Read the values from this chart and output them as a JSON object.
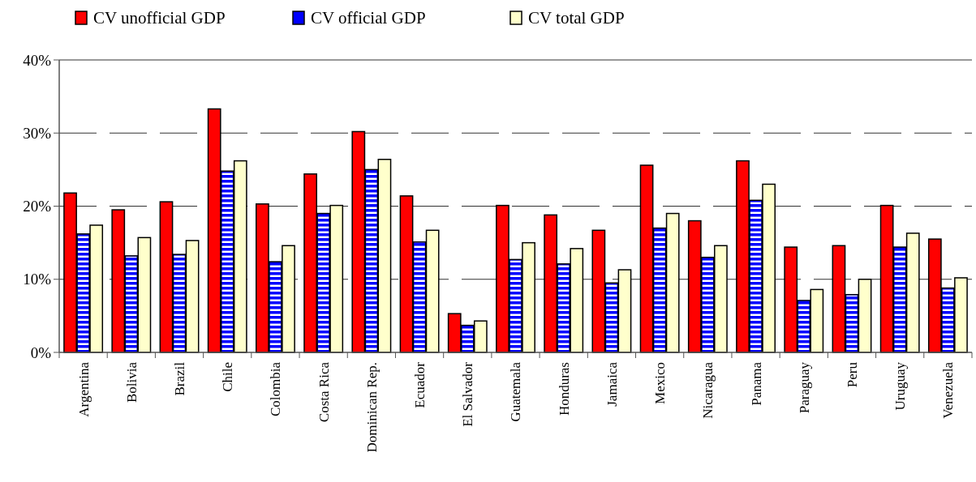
{
  "chart_data": {
    "type": "bar",
    "categories": [
      "Argentina",
      "Bolivia",
      "Brazil",
      "Chile",
      "Colombia",
      "Costa Rica",
      "Dominican Rep.",
      "Ecuador",
      "El Salvador",
      "Guatemala",
      "Honduras",
      "Jamaica",
      "Mexico",
      "Nicaragua",
      "Panama",
      "Paraguay",
      "Peru",
      "Uruguay",
      "Venezuela"
    ],
    "series": [
      {
        "name": "CV unofficial GDP",
        "color": "#ff0000",
        "values": [
          21.8,
          19.5,
          20.6,
          33.3,
          20.3,
          24.4,
          30.2,
          21.4,
          5.3,
          20.1,
          18.8,
          16.7,
          25.6,
          18.0,
          26.2,
          14.4,
          14.6,
          20.1,
          15.5
        ]
      },
      {
        "name": "CV official GDP",
        "color": "#0000ff",
        "values": [
          16.2,
          13.2,
          13.4,
          24.8,
          12.4,
          19.0,
          25.0,
          15.1,
          3.7,
          12.7,
          12.1,
          9.5,
          17.0,
          13.0,
          20.8,
          7.1,
          7.9,
          14.4,
          8.8
        ]
      },
      {
        "name": "CV total GDP",
        "color": "#ffffcc",
        "values": [
          17.4,
          15.7,
          15.3,
          26.2,
          14.6,
          20.1,
          26.4,
          16.7,
          4.3,
          15.0,
          14.2,
          11.3,
          19.0,
          14.6,
          23.0,
          8.6,
          10.0,
          16.3,
          10.2
        ]
      }
    ],
    "ylim": [
      0,
      40
    ],
    "yticks": [
      {
        "value": 0,
        "label": "0%"
      },
      {
        "value": 10,
        "label": "10%"
      },
      {
        "value": 20,
        "label": "20%"
      },
      {
        "value": 30,
        "label": "30%"
      },
      {
        "value": 40,
        "label": "40%"
      }
    ],
    "grid": "y",
    "line_style": "dashed",
    "legend": "top"
  }
}
